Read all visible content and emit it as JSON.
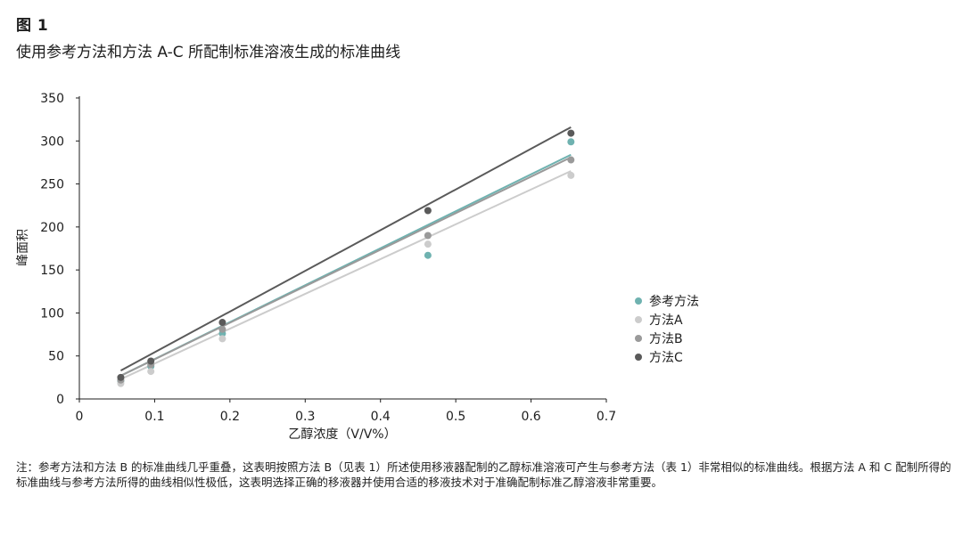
{
  "figure": {
    "label": "图 1",
    "title": "使用参考方法和方法 A-C 所配制标准溶液生成的标准曲线",
    "note": "注：参考方法和方法 B 的标准曲线几乎重叠，这表明按照方法 B（见表 1）所述使用移液器配制的乙醇标准溶液可产生与参考方法（表 1）非常相似的标准曲线。根据方法 A 和 C 配制所得的标准曲线与参考方法所得的曲线相似性极低，这表明选择正确的移液器并使用合适的移液技术对于准确配制标准乙醇溶液非常重要。"
  },
  "chart_data": {
    "type": "scatter",
    "title": "",
    "xlabel": "乙醇浓度（V/V%）",
    "ylabel": "峰面积",
    "xlim": [
      0,
      0.7
    ],
    "ylim": [
      0,
      350
    ],
    "xticks": [
      "0",
      "0.1",
      "0.2",
      "0.3",
      "0.4",
      "0.5",
      "0.6",
      "0.7"
    ],
    "yticks": [
      "0",
      "50",
      "100",
      "150",
      "200",
      "250",
      "300",
      "350"
    ],
    "legend_position": "right",
    "grid": false,
    "x": [
      0.055,
      0.095,
      0.19,
      0.463,
      0.653
    ],
    "series": [
      {
        "name": "参考方法",
        "color": "#6fb2b0",
        "values": [
          21,
          38,
          76,
          167,
          299
        ],
        "trendline": [
          [
            0.055,
            27
          ],
          [
            0.653,
            284
          ]
        ]
      },
      {
        "name": "方法A",
        "color": "#cccccc",
        "values": [
          18,
          32,
          70,
          180,
          260
        ],
        "trendline": [
          [
            0.055,
            23
          ],
          [
            0.653,
            265
          ]
        ]
      },
      {
        "name": "方法B",
        "color": "#9a9a9a",
        "values": [
          22,
          40,
          81,
          190,
          278
        ],
        "trendline": [
          [
            0.055,
            27
          ],
          [
            0.653,
            281
          ]
        ]
      },
      {
        "name": "方法C",
        "color": "#5a5a5a",
        "values": [
          25,
          44,
          89,
          219,
          309
        ],
        "trendline": [
          [
            0.055,
            33
          ],
          [
            0.653,
            316
          ]
        ]
      }
    ]
  }
}
